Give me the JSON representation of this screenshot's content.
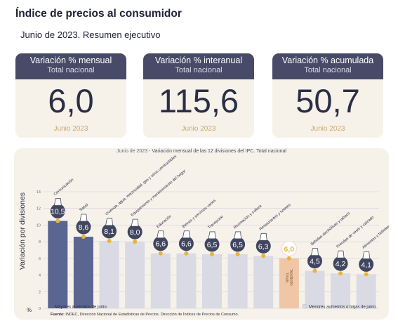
{
  "header": {
    "title": "Índice de precios al consumidor",
    "subtitle": "Junio de 2023. Resumen ejecutivo"
  },
  "cards": [
    {
      "title": "Variación % mensual",
      "sub": "Total nacional",
      "value": "6,0",
      "date": "Junio 2023"
    },
    {
      "title": "Variación % interanual",
      "sub": "Total nacional",
      "value": "115,6",
      "date": "Junio 2023"
    },
    {
      "title": "Variación % acumulada",
      "sub": "Total nacional",
      "value": "50,7",
      "date": "Junio 2023"
    }
  ],
  "chart_data": {
    "type": "bar",
    "title_prefix": "Junio de 2023 - ",
    "title": "Variación mensual de las 12 divisiones del IPC. Total nacional",
    "ylabel": "Variación por divisiones",
    "yunit": "%",
    "ylim": [
      0,
      14
    ],
    "yticks": [
      "0",
      "2",
      "4",
      "6",
      "8",
      "10",
      "12",
      "14"
    ],
    "grid": true,
    "categories": [
      "Comunicación",
      "Salud",
      "Vivienda, agua, electricidad, gas y otros combustibles",
      "Equipamiento y mantenimiento del hogar",
      "Educación",
      "Bienes y servicios varios",
      "Transporte",
      "Recreación y cultura",
      "Restaurantes y hoteles",
      "NIVEL GENERAL",
      "Bebidas alcohólicas y tabaco",
      "Prendas de vestir y calzado",
      "Alimentos y bebidas no alcohólicas"
    ],
    "value_labels": [
      "10,5",
      "8,6",
      "8,1",
      "8,0",
      "6,6",
      "6,6",
      "6,5",
      "6,5",
      "6,3",
      "6,0",
      "4,5",
      "4,2",
      "4,1"
    ],
    "values": [
      10.5,
      8.6,
      8.1,
      8.0,
      6.6,
      6.6,
      6.5,
      6.5,
      6.3,
      6.0,
      4.5,
      4.2,
      4.1
    ],
    "groups": [
      "mayor",
      "mayor",
      "menor",
      "menor",
      "menor",
      "menor",
      "menor",
      "menor",
      "menor",
      "general",
      "menor",
      "menor",
      "menor"
    ],
    "general_label": [
      "NIVEL",
      "GENERAL"
    ],
    "legend": {
      "mayor": "Mayores aumentos de junio.",
      "menor": "Menores aumentos o bajas de junio."
    },
    "colors": {
      "mayor": "#5b6591",
      "menor": "#d9dae3",
      "general": "#efc6a6",
      "badge": "#414660",
      "dot": "#e9b43a",
      "general_badge_text": "#e9b43a"
    },
    "source_label": "Fuente:",
    "source": "INDEC, Dirección Nacional de Estadísticas de Precios. Dirección de Índices de Precios de Consumo."
  }
}
